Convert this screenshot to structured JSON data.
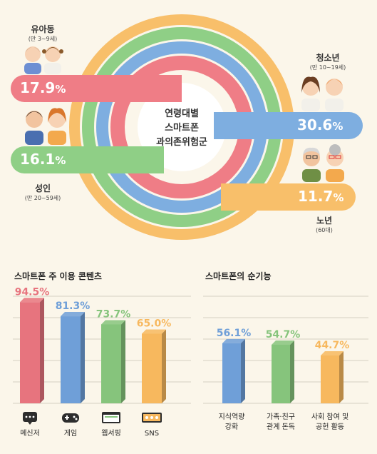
{
  "center_label": [
    "연령대별",
    "스마트폰",
    "과의존위험군"
  ],
  "groups": [
    {
      "key": "child",
      "title": "유아동",
      "subtitle": "(만 3~9세)",
      "value": "17.9",
      "unit": "%",
      "color": "#ef7d86"
    },
    {
      "key": "teen",
      "title": "청소년",
      "subtitle": "(만 10~19세)",
      "value": "30.6",
      "unit": "%",
      "color": "#7eaee0"
    },
    {
      "key": "adult",
      "title": "성인",
      "subtitle": "(만 20~59세)",
      "value": "16.1",
      "unit": "%",
      "color": "#8fcf86"
    },
    {
      "key": "senior",
      "title": "노년",
      "subtitle": "(60대)",
      "value": "11.7",
      "unit": "%",
      "color": "#f8bf6a"
    }
  ],
  "chart_data": [
    {
      "type": "bar",
      "title": "스마트폰 주 이용 콘텐츠",
      "categories": [
        "메신저",
        "게임",
        "웹서핑",
        "SNS"
      ],
      "values": [
        94.5,
        81.3,
        73.7,
        65.0
      ],
      "value_labels": [
        "94.5%",
        "81.3%",
        "73.7%",
        "65.0%"
      ],
      "colors": [
        "#e7747e",
        "#6f9fd8",
        "#86c47c",
        "#f7b85e"
      ],
      "icons": [
        "messenger-icon",
        "gamepad-icon",
        "browser-icon",
        "sns-icon"
      ],
      "ylim": [
        0,
        100
      ],
      "grid": true
    },
    {
      "type": "bar",
      "title": "스마트폰의 순기능",
      "categories": [
        [
          "지식역량",
          "강화"
        ],
        [
          "가족·친구",
          "관계 돈독"
        ],
        [
          "사회 참여 및",
          "공헌 활동"
        ]
      ],
      "values": [
        56.1,
        54.7,
        44.7
      ],
      "value_labels": [
        "56.1%",
        "54.7%",
        "44.7%"
      ],
      "colors": [
        "#6f9fd8",
        "#86c47c",
        "#f7b85e"
      ],
      "ylim": [
        0,
        100
      ],
      "grid": true
    }
  ]
}
